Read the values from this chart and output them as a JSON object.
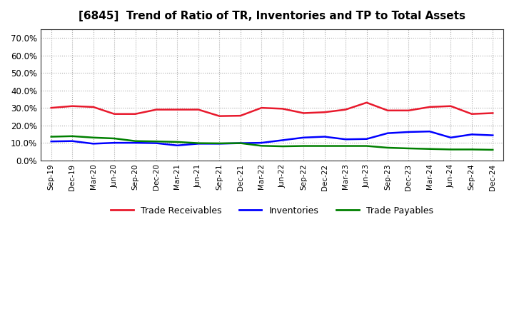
{
  "title": "[6845]  Trend of Ratio of TR, Inventories and TP to Total Assets",
  "x_labels": [
    "Sep-19",
    "Dec-19",
    "Mar-20",
    "Jun-20",
    "Sep-20",
    "Dec-20",
    "Mar-21",
    "Jun-21",
    "Sep-21",
    "Dec-21",
    "Mar-22",
    "Jun-22",
    "Sep-22",
    "Dec-22",
    "Mar-23",
    "Jun-23",
    "Sep-23",
    "Dec-23",
    "Mar-24",
    "Jun-24",
    "Sep-24",
    "Dec-24"
  ],
  "trade_receivables": [
    0.3,
    0.31,
    0.305,
    0.265,
    0.265,
    0.29,
    0.29,
    0.29,
    0.253,
    0.255,
    0.3,
    0.295,
    0.27,
    0.275,
    0.29,
    0.33,
    0.285,
    0.285,
    0.305,
    0.31,
    0.265,
    0.27
  ],
  "inventories": [
    0.108,
    0.11,
    0.095,
    0.1,
    0.1,
    0.098,
    0.085,
    0.095,
    0.095,
    0.098,
    0.1,
    0.115,
    0.13,
    0.135,
    0.12,
    0.122,
    0.155,
    0.162,
    0.165,
    0.13,
    0.148,
    0.143
  ],
  "trade_payables": [
    0.135,
    0.138,
    0.13,
    0.125,
    0.11,
    0.108,
    0.105,
    0.098,
    0.097,
    0.098,
    0.083,
    0.08,
    0.082,
    0.082,
    0.082,
    0.082,
    0.072,
    0.068,
    0.065,
    0.062,
    0.062,
    0.06
  ],
  "line_color_tr": "#e8192c",
  "line_color_inv": "#0000ff",
  "line_color_tp": "#008000",
  "ylim": [
    0.0,
    0.75
  ],
  "yticks": [
    0.0,
    0.1,
    0.2,
    0.3,
    0.4,
    0.5,
    0.6,
    0.7
  ],
  "background_color": "#ffffff",
  "plot_bg_color": "#ffffff",
  "grid_color": "#aaaaaa",
  "legend_labels": [
    "Trade Receivables",
    "Inventories",
    "Trade Payables"
  ]
}
